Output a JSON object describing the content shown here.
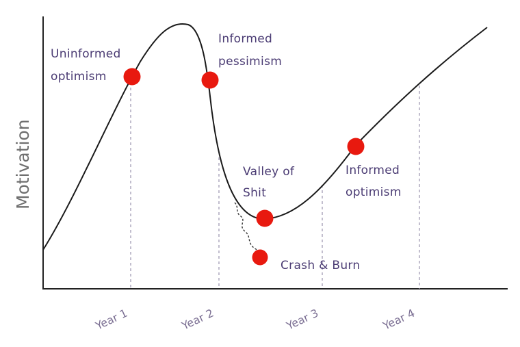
{
  "diagram": {
    "y_axis_label": "Motivation",
    "x_ticks": [
      "Year 1",
      "Year 2",
      "Year 3",
      "Year 4"
    ],
    "stages": [
      {
        "name": "uninformed-optimism",
        "lines": [
          "Uninformed",
          "optimism"
        ]
      },
      {
        "name": "informed-pessimism",
        "lines": [
          "Informed",
          "pessimism"
        ]
      },
      {
        "name": "valley",
        "lines": [
          "Valley of",
          "Shit"
        ]
      },
      {
        "name": "crash-and-burn",
        "lines": [
          "Crash & Burn"
        ]
      },
      {
        "name": "informed-optimism",
        "lines": [
          "Informed",
          "optimism"
        ]
      }
    ],
    "colors": {
      "curve": "#1a1a1a",
      "marker": "#e8190f",
      "guide": "#9a93ad",
      "label": "#4a3b73"
    }
  }
}
